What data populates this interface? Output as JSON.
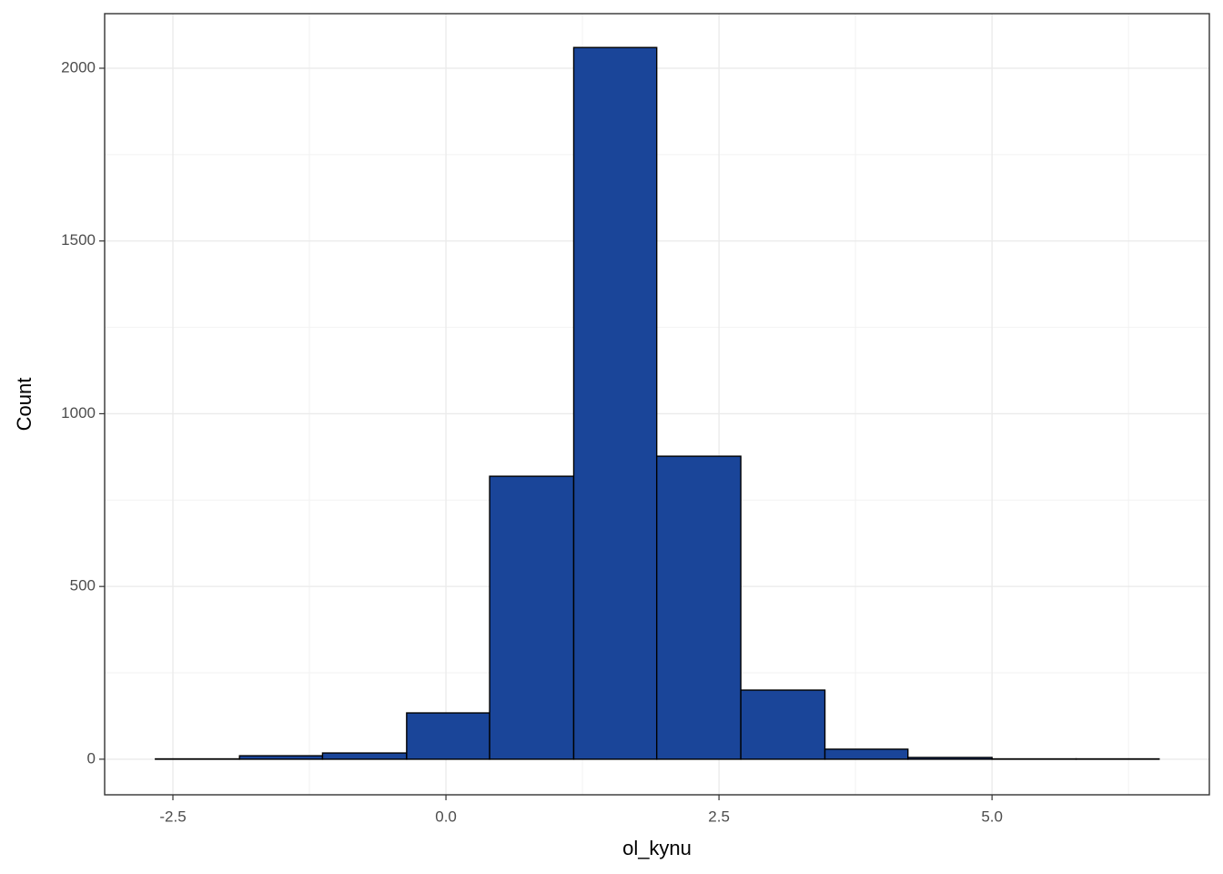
{
  "chart_data": {
    "type": "histogram",
    "x_label": "ol_kynu",
    "y_label": "Count",
    "bins": [
      -2.66,
      -1.89,
      -1.13,
      -0.36,
      0.4,
      1.17,
      1.93,
      2.7,
      3.47,
      4.23,
      5.0,
      5.77,
      6.53
    ],
    "values": [
      1,
      10,
      18,
      134,
      819,
      2060,
      877,
      200,
      29,
      5,
      1,
      1
    ],
    "color": "#1a4599",
    "edge_color": "#000000",
    "xlim": [
      -3.125,
      6.99
    ],
    "ylim": [
      -103,
      2158
    ],
    "xticks": [
      -2.5,
      {
        "value": 0,
        "label": "0.0"
      },
      2.5,
      {
        "value": 5,
        "label": "5.0"
      }
    ],
    "yticks": [
      0,
      500,
      1000,
      1500,
      2000
    ],
    "grid": true
  }
}
